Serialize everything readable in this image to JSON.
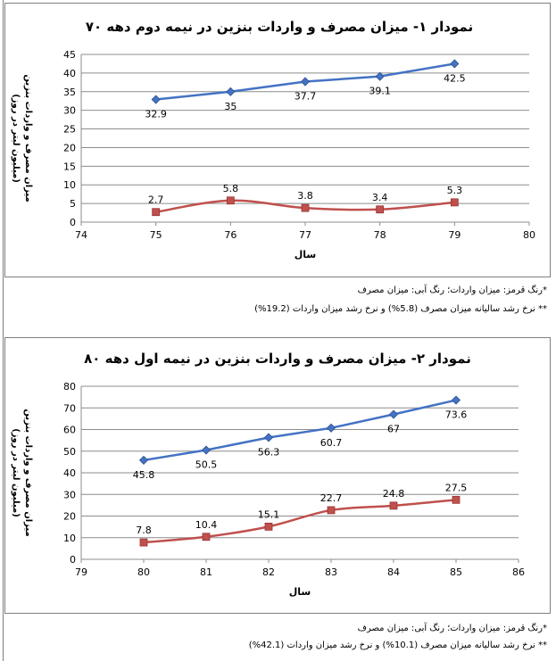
{
  "chart_data": [
    {
      "type": "line",
      "title": "نمودار ۱- میزان مصرف و واردات بنزین در نیمه دوم دهه ۷۰",
      "xlabel": "سال",
      "ylabel": "میزان مصرف و واردات بنزین",
      "ylabel_sub": "(میلیون لیتر در روز)",
      "xlim": [
        74,
        80
      ],
      "ylim": [
        0,
        45
      ],
      "x_ticks": [
        74,
        75,
        76,
        77,
        78,
        79,
        80
      ],
      "y_ticks": [
        0,
        5,
        10,
        15,
        20,
        25,
        30,
        35,
        40,
        45
      ],
      "grid": true,
      "series": [
        {
          "color": "#4472c4",
          "marker": "diamond",
          "smooth": false,
          "x": [
            75,
            76,
            77,
            78,
            79
          ],
          "values": [
            32.9,
            35,
            37.7,
            39.1,
            42.5
          ],
          "labels": [
            "32.9",
            "35",
            "37.7",
            "39.1",
            "42.5"
          ]
        },
        {
          "color": "#c0504d",
          "marker": "square",
          "smooth": true,
          "x": [
            75,
            76,
            77,
            78,
            79
          ],
          "values": [
            2.7,
            5.8,
            3.8,
            3.4,
            5.3
          ],
          "labels": [
            "2.7",
            "5.8",
            "3.8",
            "3.4",
            "5.3"
          ]
        }
      ]
    },
    {
      "type": "line",
      "title": "نمودار ۲- میزان مصرف و واردات بنزین در نیمه اول دهه ۸۰",
      "xlabel": "سال",
      "ylabel": "میزان مصرف و واردات بنزین",
      "ylabel_sub": "(میلیون لیتر در روز)",
      "xlim": [
        79,
        86
      ],
      "ylim": [
        0,
        80
      ],
      "x_ticks": [
        79,
        80,
        81,
        82,
        83,
        84,
        85,
        86
      ],
      "y_ticks": [
        0,
        10,
        20,
        30,
        40,
        50,
        60,
        70,
        80
      ],
      "grid": true,
      "series": [
        {
          "color": "#4472c4",
          "marker": "diamond",
          "smooth": false,
          "x": [
            80,
            81,
            82,
            83,
            84,
            85
          ],
          "values": [
            45.8,
            50.5,
            56.3,
            60.7,
            67,
            73.6
          ],
          "labels": [
            "45.8",
            "50.5",
            "56.3",
            "60.7",
            "67",
            "73.6"
          ]
        },
        {
          "color": "#c0504d",
          "marker": "square",
          "smooth": true,
          "x": [
            80,
            81,
            82,
            83,
            84,
            85
          ],
          "values": [
            7.8,
            10.4,
            15.1,
            22.7,
            24.8,
            27.5
          ],
          "labels": [
            "7.8",
            "10.4",
            "15.1",
            "22.7",
            "24.8",
            "27.5"
          ]
        }
      ]
    }
  ],
  "notes1": {
    "line1": "*رنگ قرمز: میزان واردات؛ رنگ آبی: میزان مصرف",
    "line2": "** نرخ رشد سالیانه میزان مصرف (5.8%) و نرخ رشد میزان واردات (19.2%)"
  },
  "notes2": {
    "line1": "*رنگ قرمز: میزان واردات؛ رنگ آبی: میزان مصرف",
    "line2": "** نرخ رشد سالیانه میزان مصرف (10.1%) و نرخ رشد میزان واردات (42.1%)"
  }
}
